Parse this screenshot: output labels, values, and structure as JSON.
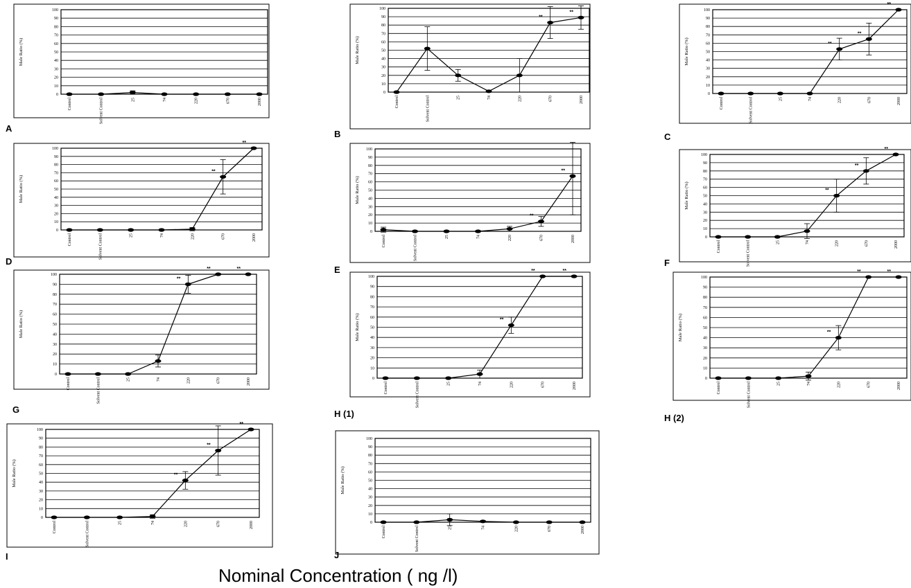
{
  "figure": {
    "x_axis_caption": "Nominal Concentration (      ng /l)"
  },
  "chart_data": [
    {
      "panel": "A",
      "type": "line",
      "ylabel": "Male Ratio (%)",
      "ylim": [
        0,
        100
      ],
      "yticks": [
        0,
        10,
        20,
        30,
        40,
        50,
        60,
        70,
        80,
        90,
        100
      ],
      "categories": [
        "Control",
        "Solvent Control",
        "25",
        "74",
        "220",
        "670",
        "2000"
      ],
      "values": [
        0,
        0,
        2,
        0,
        0,
        0,
        0
      ],
      "errors": [
        0,
        0,
        2,
        0,
        0,
        0,
        0
      ],
      "significance": [
        "",
        "",
        "",
        "",
        "",
        "",
        ""
      ],
      "grid": true
    },
    {
      "panel": "B",
      "type": "line",
      "ylabel": "Male Ratio (%)",
      "ylim": [
        0,
        100
      ],
      "yticks": [
        0,
        10,
        20,
        30,
        40,
        50,
        60,
        70,
        80,
        90,
        100
      ],
      "categories": [
        "Control",
        "Solvent Control",
        "25",
        "74",
        "220",
        "670",
        "2000"
      ],
      "values": [
        0,
        52,
        20,
        1,
        20,
        83,
        89
      ],
      "errors": [
        0,
        26,
        7,
        0,
        20,
        19,
        14
      ],
      "significance": [
        "",
        "",
        "",
        "",
        "",
        "**",
        "**"
      ],
      "grid": true
    },
    {
      "panel": "C",
      "type": "line",
      "ylabel": "Male Ratio (%)",
      "ylim": [
        0,
        100
      ],
      "yticks": [
        0,
        10,
        20,
        30,
        40,
        50,
        60,
        70,
        80,
        90,
        100
      ],
      "categories": [
        "Control",
        "Solvent Control",
        "25",
        "74",
        "220",
        "670",
        "2000"
      ],
      "values": [
        0,
        0,
        0,
        0,
        53,
        65,
        100
      ],
      "errors": [
        0,
        0,
        0,
        0,
        13,
        19,
        0
      ],
      "significance": [
        "",
        "",
        "",
        "",
        "**",
        "**",
        "**"
      ],
      "grid": true
    },
    {
      "panel": "D",
      "type": "line",
      "ylabel": "Male Ratio (%)",
      "ylim": [
        0,
        100
      ],
      "yticks": [
        0,
        10,
        20,
        30,
        40,
        50,
        60,
        70,
        80,
        90,
        100
      ],
      "categories": [
        "Control",
        "Solvent Control",
        "25",
        "74",
        "220",
        "670",
        "2000"
      ],
      "values": [
        0,
        0,
        0,
        0,
        1,
        65,
        100
      ],
      "errors": [
        0,
        0,
        0,
        0,
        2,
        21,
        0
      ],
      "significance": [
        "",
        "",
        "",
        "",
        "",
        "**",
        "**"
      ],
      "grid": true
    },
    {
      "panel": "E",
      "type": "line",
      "ylabel": "Male Ratio (%)",
      "ylim": [
        0,
        100
      ],
      "yticks": [
        0,
        10,
        20,
        30,
        40,
        50,
        60,
        70,
        80,
        90,
        100
      ],
      "categories": [
        "Control",
        "Solvent Control",
        "25",
        "74",
        "220",
        "670",
        "2000"
      ],
      "values": [
        2,
        0,
        0,
        0,
        3,
        12,
        67
      ],
      "errors": [
        3,
        0,
        0,
        0,
        3,
        6,
        47
      ],
      "significance": [
        "",
        "",
        "",
        "",
        "",
        "**",
        "**"
      ],
      "grid": true
    },
    {
      "panel": "F",
      "type": "line",
      "ylabel": "Male Ratio (%)",
      "ylim": [
        0,
        100
      ],
      "yticks": [
        0,
        10,
        20,
        30,
        40,
        50,
        60,
        70,
        80,
        90,
        100
      ],
      "categories": [
        "Control",
        "Solvent Control",
        "25",
        "74",
        "220",
        "670",
        "2000"
      ],
      "values": [
        0,
        0,
        0,
        7,
        50,
        80,
        100
      ],
      "errors": [
        0,
        0,
        0,
        9,
        20,
        16,
        0
      ],
      "significance": [
        "",
        "",
        "",
        "",
        "**",
        "**",
        "**"
      ],
      "grid": true
    },
    {
      "panel": "G",
      "type": "line",
      "ylabel": "Male Ratio (%)",
      "ylim": [
        0,
        100
      ],
      "yticks": [
        0,
        10,
        20,
        30,
        40,
        50,
        60,
        70,
        80,
        90,
        100
      ],
      "categories": [
        "Control",
        "Solvent Control",
        "25",
        "74",
        "220",
        "670",
        "2000"
      ],
      "values": [
        0,
        0,
        0,
        13,
        90,
        100,
        100
      ],
      "errors": [
        0,
        0,
        0,
        6,
        9,
        0,
        0
      ],
      "significance": [
        "",
        "",
        "",
        "",
        "**",
        "**",
        "**"
      ],
      "grid": true
    },
    {
      "panel": "H (1)",
      "type": "line",
      "ylabel": "Male Ratio (%)",
      "ylim": [
        0,
        100
      ],
      "yticks": [
        0,
        10,
        20,
        30,
        40,
        50,
        60,
        70,
        80,
        90,
        100
      ],
      "categories": [
        "Control",
        "Solvent Control",
        "25",
        "74",
        "220",
        "670",
        "2000"
      ],
      "values": [
        0,
        0,
        0,
        4,
        52,
        100,
        100
      ],
      "errors": [
        0,
        0,
        0,
        4,
        8,
        0,
        0
      ],
      "significance": [
        "",
        "",
        "",
        "",
        "**",
        "**",
        "**"
      ],
      "grid": true
    },
    {
      "panel": "H (2)",
      "type": "line",
      "ylabel": "Male Ratio (%)",
      "ylim": [
        0,
        100
      ],
      "yticks": [
        0,
        10,
        20,
        30,
        40,
        50,
        60,
        70,
        80,
        90,
        100
      ],
      "categories": [
        "Control",
        "Solvent Control",
        "25",
        "74",
        "220",
        "670",
        "2000"
      ],
      "values": [
        0,
        0,
        0,
        2,
        40,
        100,
        100
      ],
      "errors": [
        0,
        0,
        0,
        4,
        12,
        0,
        0
      ],
      "significance": [
        "",
        "",
        "",
        "",
        "**",
        "**",
        "**"
      ],
      "grid": true
    },
    {
      "panel": "I",
      "type": "line",
      "ylabel": "Male Ratio (%)",
      "ylim": [
        0,
        100
      ],
      "yticks": [
        0,
        10,
        20,
        30,
        40,
        50,
        60,
        70,
        80,
        90,
        100
      ],
      "categories": [
        "Control",
        "Solvent Control",
        "25",
        "74",
        "220",
        "670",
        "2000"
      ],
      "values": [
        0,
        0,
        0,
        1,
        42,
        76,
        100
      ],
      "errors": [
        0,
        0,
        0,
        2,
        10,
        28,
        0
      ],
      "significance": [
        "",
        "",
        "",
        "",
        "**",
        "**",
        "**"
      ],
      "grid": true
    },
    {
      "panel": "J",
      "type": "line",
      "ylabel": "Male Ratio (%)",
      "ylim": [
        0,
        100
      ],
      "yticks": [
        0,
        10,
        20,
        30,
        40,
        50,
        60,
        70,
        80,
        90,
        100
      ],
      "categories": [
        "Control",
        "Solvent Control",
        "25",
        "74",
        "220",
        "670",
        "2000"
      ],
      "values": [
        0,
        0,
        3,
        1,
        0,
        0,
        0
      ],
      "errors": [
        0,
        0,
        7,
        1,
        0,
        0,
        0
      ],
      "significance": [
        "",
        "",
        "",
        "",
        "",
        "",
        ""
      ],
      "grid": true
    }
  ]
}
